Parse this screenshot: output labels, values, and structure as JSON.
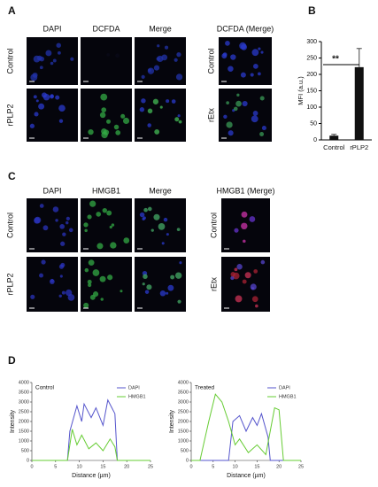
{
  "figure": {
    "panel_a": {
      "label": "A",
      "columns": [
        "DAPI",
        "DCFDA",
        "Merge"
      ],
      "rows": [
        "Control",
        "rPLP2"
      ],
      "merge_title": "DCFDA (Merge)",
      "merge_rows": [
        "Control",
        "rEtx"
      ]
    },
    "panel_b": {
      "label": "B"
    },
    "panel_c": {
      "label": "C",
      "columns": [
        "DAPI",
        "HMGB1",
        "Merge"
      ],
      "rows": [
        "Control",
        "rPLP2"
      ],
      "merge_title": "HMGB1 (Merge)",
      "merge_rows": [
        "Control",
        "rEtx"
      ]
    },
    "panel_d": {
      "label": "D"
    }
  },
  "chart_data": [
    {
      "type": "bar",
      "ylabel": "MFI (a.u.)",
      "categories": [
        "Control",
        "rPLP2"
      ],
      "values": [
        13,
        222
      ],
      "errors": [
        4,
        57
      ],
      "color": "#111111",
      "ylim": [
        0,
        300
      ],
      "yticks": [
        0,
        50,
        100,
        150,
        200,
        250,
        300
      ],
      "annotation": "**"
    },
    {
      "type": "line",
      "title": "Control",
      "xlabel": "Distance (µm)",
      "ylabel": "Intensity",
      "xlim": [
        0,
        25
      ],
      "ylim": [
        0,
        4000
      ],
      "xticks": [
        0,
        5,
        10,
        15,
        20,
        25
      ],
      "yticks": [
        0,
        500,
        1000,
        1500,
        2000,
        2500,
        3000,
        3500,
        4000
      ],
      "series": [
        {
          "name": "DAPI",
          "color": "#5555cc",
          "x": [
            0,
            7.5,
            8,
            9.5,
            10.5,
            11,
            12.5,
            13.5,
            15,
            16,
            17.5,
            18,
            25
          ],
          "values": [
            0,
            0,
            1500,
            2800,
            2000,
            2900,
            2200,
            2700,
            1800,
            3100,
            2400,
            0,
            0
          ]
        },
        {
          "name": "HMGB1",
          "color": "#66cc33",
          "x": [
            0,
            7.5,
            8.5,
            9.5,
            10.5,
            12,
            13.5,
            15,
            16.5,
            17.5,
            18,
            25
          ],
          "values": [
            0,
            0,
            1600,
            800,
            1300,
            600,
            900,
            500,
            1100,
            700,
            0,
            0
          ]
        }
      ]
    },
    {
      "type": "line",
      "title": "Treated",
      "xlabel": "Distance (µm)",
      "ylabel": "Intensity",
      "xlim": [
        0,
        25
      ],
      "ylim": [
        0,
        4000
      ],
      "xticks": [
        0,
        5,
        10,
        15,
        20,
        25
      ],
      "yticks": [
        0,
        500,
        1000,
        1500,
        2000,
        2500,
        3000,
        3500,
        4000
      ],
      "series": [
        {
          "name": "DAPI",
          "color": "#5555cc",
          "x": [
            0,
            8.5,
            9.5,
            11,
            12.5,
            14,
            15,
            16,
            17.5,
            18,
            25
          ],
          "values": [
            0,
            0,
            2000,
            2300,
            1500,
            2200,
            1800,
            2400,
            1200,
            0,
            0
          ]
        },
        {
          "name": "HMGB1",
          "color": "#66cc33",
          "x": [
            0,
            2,
            4,
            5.5,
            7,
            8.5,
            10,
            11,
            13,
            15,
            17,
            19,
            20,
            21,
            25
          ],
          "values": [
            0,
            0,
            2000,
            3400,
            3000,
            2000,
            800,
            1100,
            400,
            800,
            300,
            2700,
            2600,
            0,
            0
          ]
        }
      ]
    }
  ]
}
